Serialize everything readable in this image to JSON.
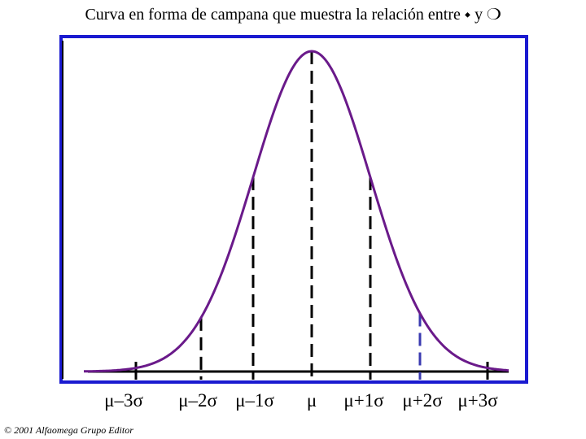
{
  "title": "Curva en forma de campana que muestra la relación entre ⬩ y ❍",
  "axis_labels": [
    "μ–3σ",
    "μ–2σ",
    "μ–1σ",
    "μ",
    "μ+1σ",
    "μ+2σ",
    "μ+3σ"
  ],
  "footer": "© 2001 Alfaomega Grupo Editor"
}
